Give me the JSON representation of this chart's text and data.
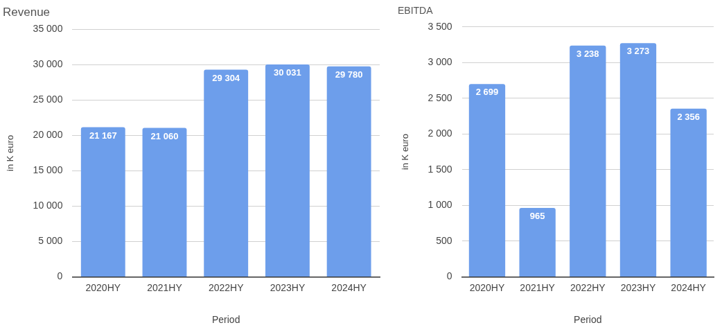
{
  "chart_data": [
    {
      "type": "bar",
      "title": "Revenue",
      "xlabel": "Period",
      "ylabel": "in K euro",
      "categories": [
        "2020HY",
        "2021HY",
        "2022HY",
        "2023HY",
        "2024HY"
      ],
      "values": [
        21167,
        21060,
        29304,
        30031,
        29780
      ],
      "value_labels": [
        "21 167",
        "21 060",
        "29 304",
        "30 031",
        "29 780"
      ],
      "color": "#6d9eeb",
      "ylim": [
        0,
        35000
      ],
      "yticks": [
        {
          "value": 0,
          "label": "0"
        },
        {
          "value": 5000,
          "label": "5 000"
        },
        {
          "value": 10000,
          "label": "10 000"
        },
        {
          "value": 15000,
          "label": "15 000"
        },
        {
          "value": 20000,
          "label": "20 000"
        },
        {
          "value": 25000,
          "label": "25 000"
        },
        {
          "value": 30000,
          "label": "30 000"
        },
        {
          "value": 35000,
          "label": "35 000"
        }
      ],
      "grid": "y"
    },
    {
      "type": "bar",
      "title": "EBITDA",
      "xlabel": "Period",
      "ylabel": "in K euro",
      "categories": [
        "2020HY",
        "2021HY",
        "2022HY",
        "2023HY",
        "2024HY"
      ],
      "values": [
        2699,
        965,
        3238,
        3273,
        2356
      ],
      "value_labels": [
        "2 699",
        "965",
        "3 238",
        "3 273",
        "2 356"
      ],
      "color": "#6d9eeb",
      "ylim": [
        0,
        3500
      ],
      "yticks": [
        {
          "value": 0,
          "label": "0"
        },
        {
          "value": 500,
          "label": "500"
        },
        {
          "value": 1000,
          "label": "1 000"
        },
        {
          "value": 1500,
          "label": "1 500"
        },
        {
          "value": 2000,
          "label": "2 000"
        },
        {
          "value": 2500,
          "label": "2 500"
        },
        {
          "value": 3000,
          "label": "3 000"
        },
        {
          "value": 3500,
          "label": "3 500"
        }
      ],
      "grid": "y"
    }
  ]
}
